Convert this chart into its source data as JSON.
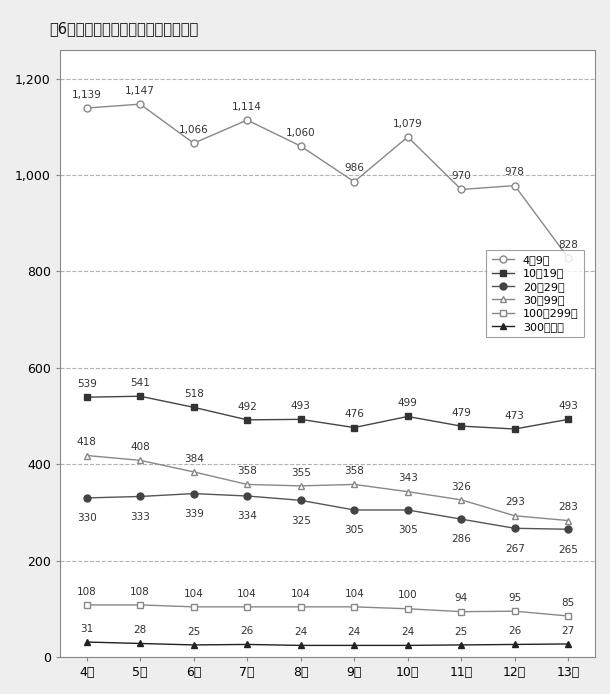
{
  "title": "囶6　従業者規模別の年次別事業所数",
  "x_labels": [
    "4年",
    "5年",
    "6年",
    "7年",
    "8年",
    "9年",
    "10年",
    "11年",
    "12年",
    "13年"
  ],
  "series": [
    {
      "label": "4～9人",
      "values": [
        1139,
        1147,
        1066,
        1114,
        1060,
        986,
        1079,
        970,
        978,
        828
      ],
      "marker": "o",
      "markerfacecolor": "white",
      "markeredgecolor": "#888888",
      "color": "#888888",
      "linewidth": 1.0
    },
    {
      "label": "10～19人",
      "values": [
        539,
        541,
        518,
        492,
        493,
        476,
        499,
        479,
        473,
        493
      ],
      "marker": "s",
      "markerfacecolor": "#333333",
      "markeredgecolor": "#333333",
      "color": "#444444",
      "linewidth": 1.0
    },
    {
      "label": "20～29人",
      "values": [
        330,
        333,
        339,
        334,
        325,
        305,
        305,
        286,
        267,
        265
      ],
      "marker": "o",
      "markerfacecolor": "#444444",
      "markeredgecolor": "#444444",
      "color": "#555555",
      "linewidth": 1.0
    },
    {
      "label": "30～99人",
      "values": [
        418,
        408,
        384,
        358,
        355,
        358,
        343,
        326,
        293,
        283
      ],
      "marker": "^",
      "markerfacecolor": "white",
      "markeredgecolor": "#888888",
      "color": "#888888",
      "linewidth": 1.0
    },
    {
      "label": "100～299人",
      "values": [
        108,
        108,
        104,
        104,
        104,
        104,
        100,
        94,
        95,
        85
      ],
      "marker": "s",
      "markerfacecolor": "white",
      "markeredgecolor": "#888888",
      "color": "#888888",
      "linewidth": 1.0
    },
    {
      "label": "300人以上",
      "values": [
        31,
        28,
        25,
        26,
        24,
        24,
        24,
        25,
        26,
        27
      ],
      "marker": "^",
      "markerfacecolor": "#222222",
      "markeredgecolor": "#222222",
      "color": "#222222",
      "linewidth": 1.0
    }
  ],
  "ylim": [
    0,
    1260
  ],
  "yticks": [
    0,
    200,
    400,
    600,
    800,
    1000,
    1200
  ],
  "grid_color": "#aaaaaa",
  "background_color": "#eeeeee",
  "plot_bg_color": "#ffffff",
  "label_fontsize": 7.5,
  "title_fontsize": 10.5,
  "legend_fontsize": 8.0
}
